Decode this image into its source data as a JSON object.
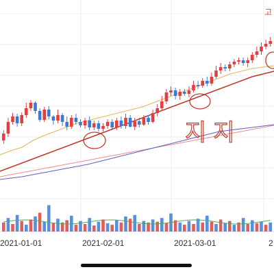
{
  "chart_data": {
    "type": "candlestick",
    "corner_label": "고",
    "annotation": "지지",
    "x_ticks": [
      "2021-01-01",
      "2021-02-01",
      "2021-03-01",
      "2"
    ],
    "colors": {
      "up": "#e04040",
      "down": "#3b7bd8",
      "ma_red": "#c0392b",
      "ma_orange": "#e5b35a",
      "ma_pink": "#f08a8a",
      "ma_blue": "#5a5fc0",
      "ma_green": "#4caf50",
      "annotation": "#c0392b"
    },
    "candles": [
      [
        205,
        195,
        210,
        190
      ],
      [
        195,
        178,
        200,
        172
      ],
      [
        178,
        170,
        182,
        165
      ],
      [
        170,
        180,
        185,
        166
      ],
      [
        180,
        168,
        184,
        164
      ],
      [
        168,
        158,
        172,
        150
      ],
      [
        158,
        150,
        162,
        146
      ],
      [
        150,
        162,
        166,
        148
      ],
      [
        162,
        175,
        178,
        158
      ],
      [
        175,
        160,
        178,
        156
      ],
      [
        160,
        170,
        174,
        155
      ],
      [
        170,
        176,
        182,
        168
      ],
      [
        176,
        168,
        180,
        160
      ],
      [
        168,
        178,
        184,
        165
      ],
      [
        178,
        185,
        190,
        170
      ],
      [
        185,
        172,
        188,
        168
      ],
      [
        172,
        178,
        182,
        166
      ],
      [
        178,
        183,
        186,
        174
      ],
      [
        183,
        176,
        188,
        172
      ],
      [
        176,
        186,
        190,
        170
      ],
      [
        186,
        180,
        190,
        176
      ],
      [
        180,
        188,
        192,
        176
      ],
      [
        188,
        184,
        192,
        180
      ],
      [
        184,
        178,
        188,
        174
      ],
      [
        178,
        186,
        190,
        174
      ],
      [
        186,
        176,
        190,
        172
      ],
      [
        176,
        184,
        188,
        170
      ],
      [
        184,
        172,
        188,
        166
      ],
      [
        172,
        185,
        186,
        168
      ],
      [
        185,
        177,
        190,
        172
      ],
      [
        177,
        182,
        186,
        172
      ],
      [
        182,
        172,
        184,
        168
      ],
      [
        172,
        178,
        182,
        168
      ],
      [
        178,
        165,
        180,
        160
      ],
      [
        165,
        158,
        170,
        152
      ],
      [
        158,
        148,
        162,
        140
      ],
      [
        148,
        135,
        152,
        130
      ],
      [
        135,
        132,
        140,
        126
      ],
      [
        132,
        140,
        145,
        128
      ],
      [
        140,
        134,
        146,
        130
      ],
      [
        134,
        137,
        140,
        130
      ],
      [
        137,
        132,
        142,
        126
      ],
      [
        132,
        124,
        135,
        118
      ],
      [
        124,
        125,
        130,
        118
      ],
      [
        125,
        118,
        128,
        114
      ],
      [
        118,
        122,
        126,
        112
      ],
      [
        122,
        112,
        125,
        106
      ],
      [
        112,
        103,
        115,
        96
      ],
      [
        103,
        98,
        108,
        92
      ],
      [
        98,
        100,
        104,
        94
      ],
      [
        100,
        94,
        104,
        90
      ],
      [
        94,
        90,
        98,
        86
      ],
      [
        90,
        88,
        94,
        84
      ],
      [
        88,
        92,
        96,
        84
      ],
      [
        92,
        88,
        98,
        84
      ],
      [
        88,
        80,
        92,
        76
      ],
      [
        80,
        75,
        84,
        68
      ],
      [
        75,
        68,
        80,
        62
      ],
      [
        68,
        64,
        72,
        58
      ],
      [
        64,
        60,
        68,
        54
      ]
    ],
    "volume": [
      {
        "v": 12,
        "up": true
      },
      {
        "v": 18,
        "up": false
      },
      {
        "v": 10,
        "up": true
      },
      {
        "v": 22,
        "up": false
      },
      {
        "v": 14,
        "up": true
      },
      {
        "v": 9,
        "up": false
      },
      {
        "v": 16,
        "up": true
      },
      {
        "v": 20,
        "up": false
      },
      {
        "v": 25,
        "up": true
      },
      {
        "v": 13,
        "up": false
      },
      {
        "v": 35,
        "up": false
      },
      {
        "v": 11,
        "up": true
      },
      {
        "v": 17,
        "up": false
      },
      {
        "v": 12,
        "up": true
      },
      {
        "v": 15,
        "up": true
      },
      {
        "v": 21,
        "up": false
      },
      {
        "v": 9,
        "up": true
      },
      {
        "v": 14,
        "up": false
      },
      {
        "v": 10,
        "up": true
      },
      {
        "v": 18,
        "up": false
      },
      {
        "v": 8,
        "up": true
      },
      {
        "v": 13,
        "up": false
      },
      {
        "v": 16,
        "up": true
      },
      {
        "v": 11,
        "up": false
      },
      {
        "v": 9,
        "up": true
      },
      {
        "v": 15,
        "up": false
      },
      {
        "v": 12,
        "up": true
      },
      {
        "v": 20,
        "up": false
      },
      {
        "v": 17,
        "up": true
      },
      {
        "v": 22,
        "up": false
      },
      {
        "v": 10,
        "up": true
      },
      {
        "v": 14,
        "up": false
      },
      {
        "v": 12,
        "up": true
      },
      {
        "v": 16,
        "up": false
      },
      {
        "v": 13,
        "up": true
      },
      {
        "v": 18,
        "up": false
      },
      {
        "v": 11,
        "up": true
      },
      {
        "v": 24,
        "up": false
      },
      {
        "v": 15,
        "up": true
      },
      {
        "v": 12,
        "up": false
      },
      {
        "v": 9,
        "up": true
      },
      {
        "v": 14,
        "up": false
      },
      {
        "v": 10,
        "up": true
      },
      {
        "v": 17,
        "up": false
      },
      {
        "v": 12,
        "up": true
      },
      {
        "v": 21,
        "up": false
      },
      {
        "v": 13,
        "up": true
      },
      {
        "v": 10,
        "up": false
      },
      {
        "v": 16,
        "up": true
      },
      {
        "v": 11,
        "up": false
      },
      {
        "v": 14,
        "up": true
      },
      {
        "v": 9,
        "up": false
      },
      {
        "v": 12,
        "up": true
      },
      {
        "v": 18,
        "up": false
      },
      {
        "v": 10,
        "up": true
      },
      {
        "v": 15,
        "up": false
      },
      {
        "v": 11,
        "up": true
      },
      {
        "v": 13,
        "up": false
      },
      {
        "v": 9,
        "up": true
      },
      {
        "v": 12,
        "up": false
      }
    ],
    "moving_averages": {
      "ma_red": [
        250,
        244,
        238,
        232,
        226,
        220,
        214,
        208,
        202,
        196,
        190,
        184,
        178,
        172,
        166,
        160,
        154,
        148,
        142,
        136,
        130,
        124,
        118,
        112,
        108,
        104
      ],
      "ma_orange": [
        226,
        220,
        215,
        205,
        198,
        192,
        186,
        180,
        176,
        172,
        168,
        164,
        160,
        156,
        150,
        144,
        138,
        132,
        126,
        120,
        114,
        108,
        104,
        100,
        98,
        96
      ],
      "ma_pink": [
        258,
        255,
        252,
        249,
        246,
        243,
        240,
        237,
        234,
        231,
        228,
        225,
        222,
        219,
        216,
        213,
        210,
        207,
        204,
        201,
        198,
        195,
        192,
        189,
        186,
        183
      ],
      "ma_blue": [
        262,
        260,
        258,
        255,
        252,
        249,
        246,
        243,
        240,
        236,
        232,
        228,
        224,
        220,
        216,
        212,
        208,
        204,
        200,
        196,
        192,
        190,
        188,
        186,
        184,
        182
      ]
    }
  }
}
